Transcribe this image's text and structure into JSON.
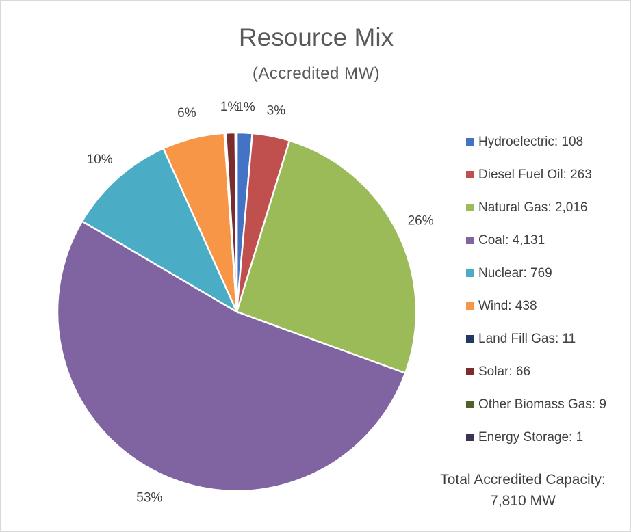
{
  "chart_data": {
    "type": "pie",
    "title": "Resource Mix",
    "subtitle": "(Accredited MW)",
    "unit": "MW",
    "slices": [
      {
        "label": "Hydroelectric",
        "value": 108,
        "value_text": "108",
        "color": "#4472C4",
        "pct_label": "1%"
      },
      {
        "label": "Diesel Fuel Oil",
        "value": 263,
        "value_text": "263",
        "color": "#C0504D",
        "pct_label": "3%"
      },
      {
        "label": "Natural Gas",
        "value": 2016,
        "value_text": "2,016",
        "color": "#9BBB59",
        "pct_label": "26%"
      },
      {
        "label": "Coal",
        "value": 4131,
        "value_text": "4,131",
        "color": "#8064A2",
        "pct_label": "53%"
      },
      {
        "label": "Nuclear",
        "value": 769,
        "value_text": "769",
        "color": "#4BACC6",
        "pct_label": "10%"
      },
      {
        "label": "Wind",
        "value": 438,
        "value_text": "438",
        "color": "#F79646",
        "pct_label": "6%"
      },
      {
        "label": "Land Fill Gas",
        "value": 11,
        "value_text": "11",
        "color": "#1F3864",
        "pct_label": ""
      },
      {
        "label": "Solar",
        "value": 66,
        "value_text": "66",
        "color": "#7B2C2C",
        "pct_label": "1%"
      },
      {
        "label": "Other Biomass Gas",
        "value": 9,
        "value_text": "9",
        "color": "#4F6228",
        "pct_label": ""
      },
      {
        "label": "Energy Storage",
        "value": 1,
        "value_text": "1",
        "color": "#3F3151",
        "pct_label": ""
      }
    ],
    "legend_position": "right",
    "total_label": "Total Accredited Capacity:",
    "total_value": "7,810 MW"
  }
}
